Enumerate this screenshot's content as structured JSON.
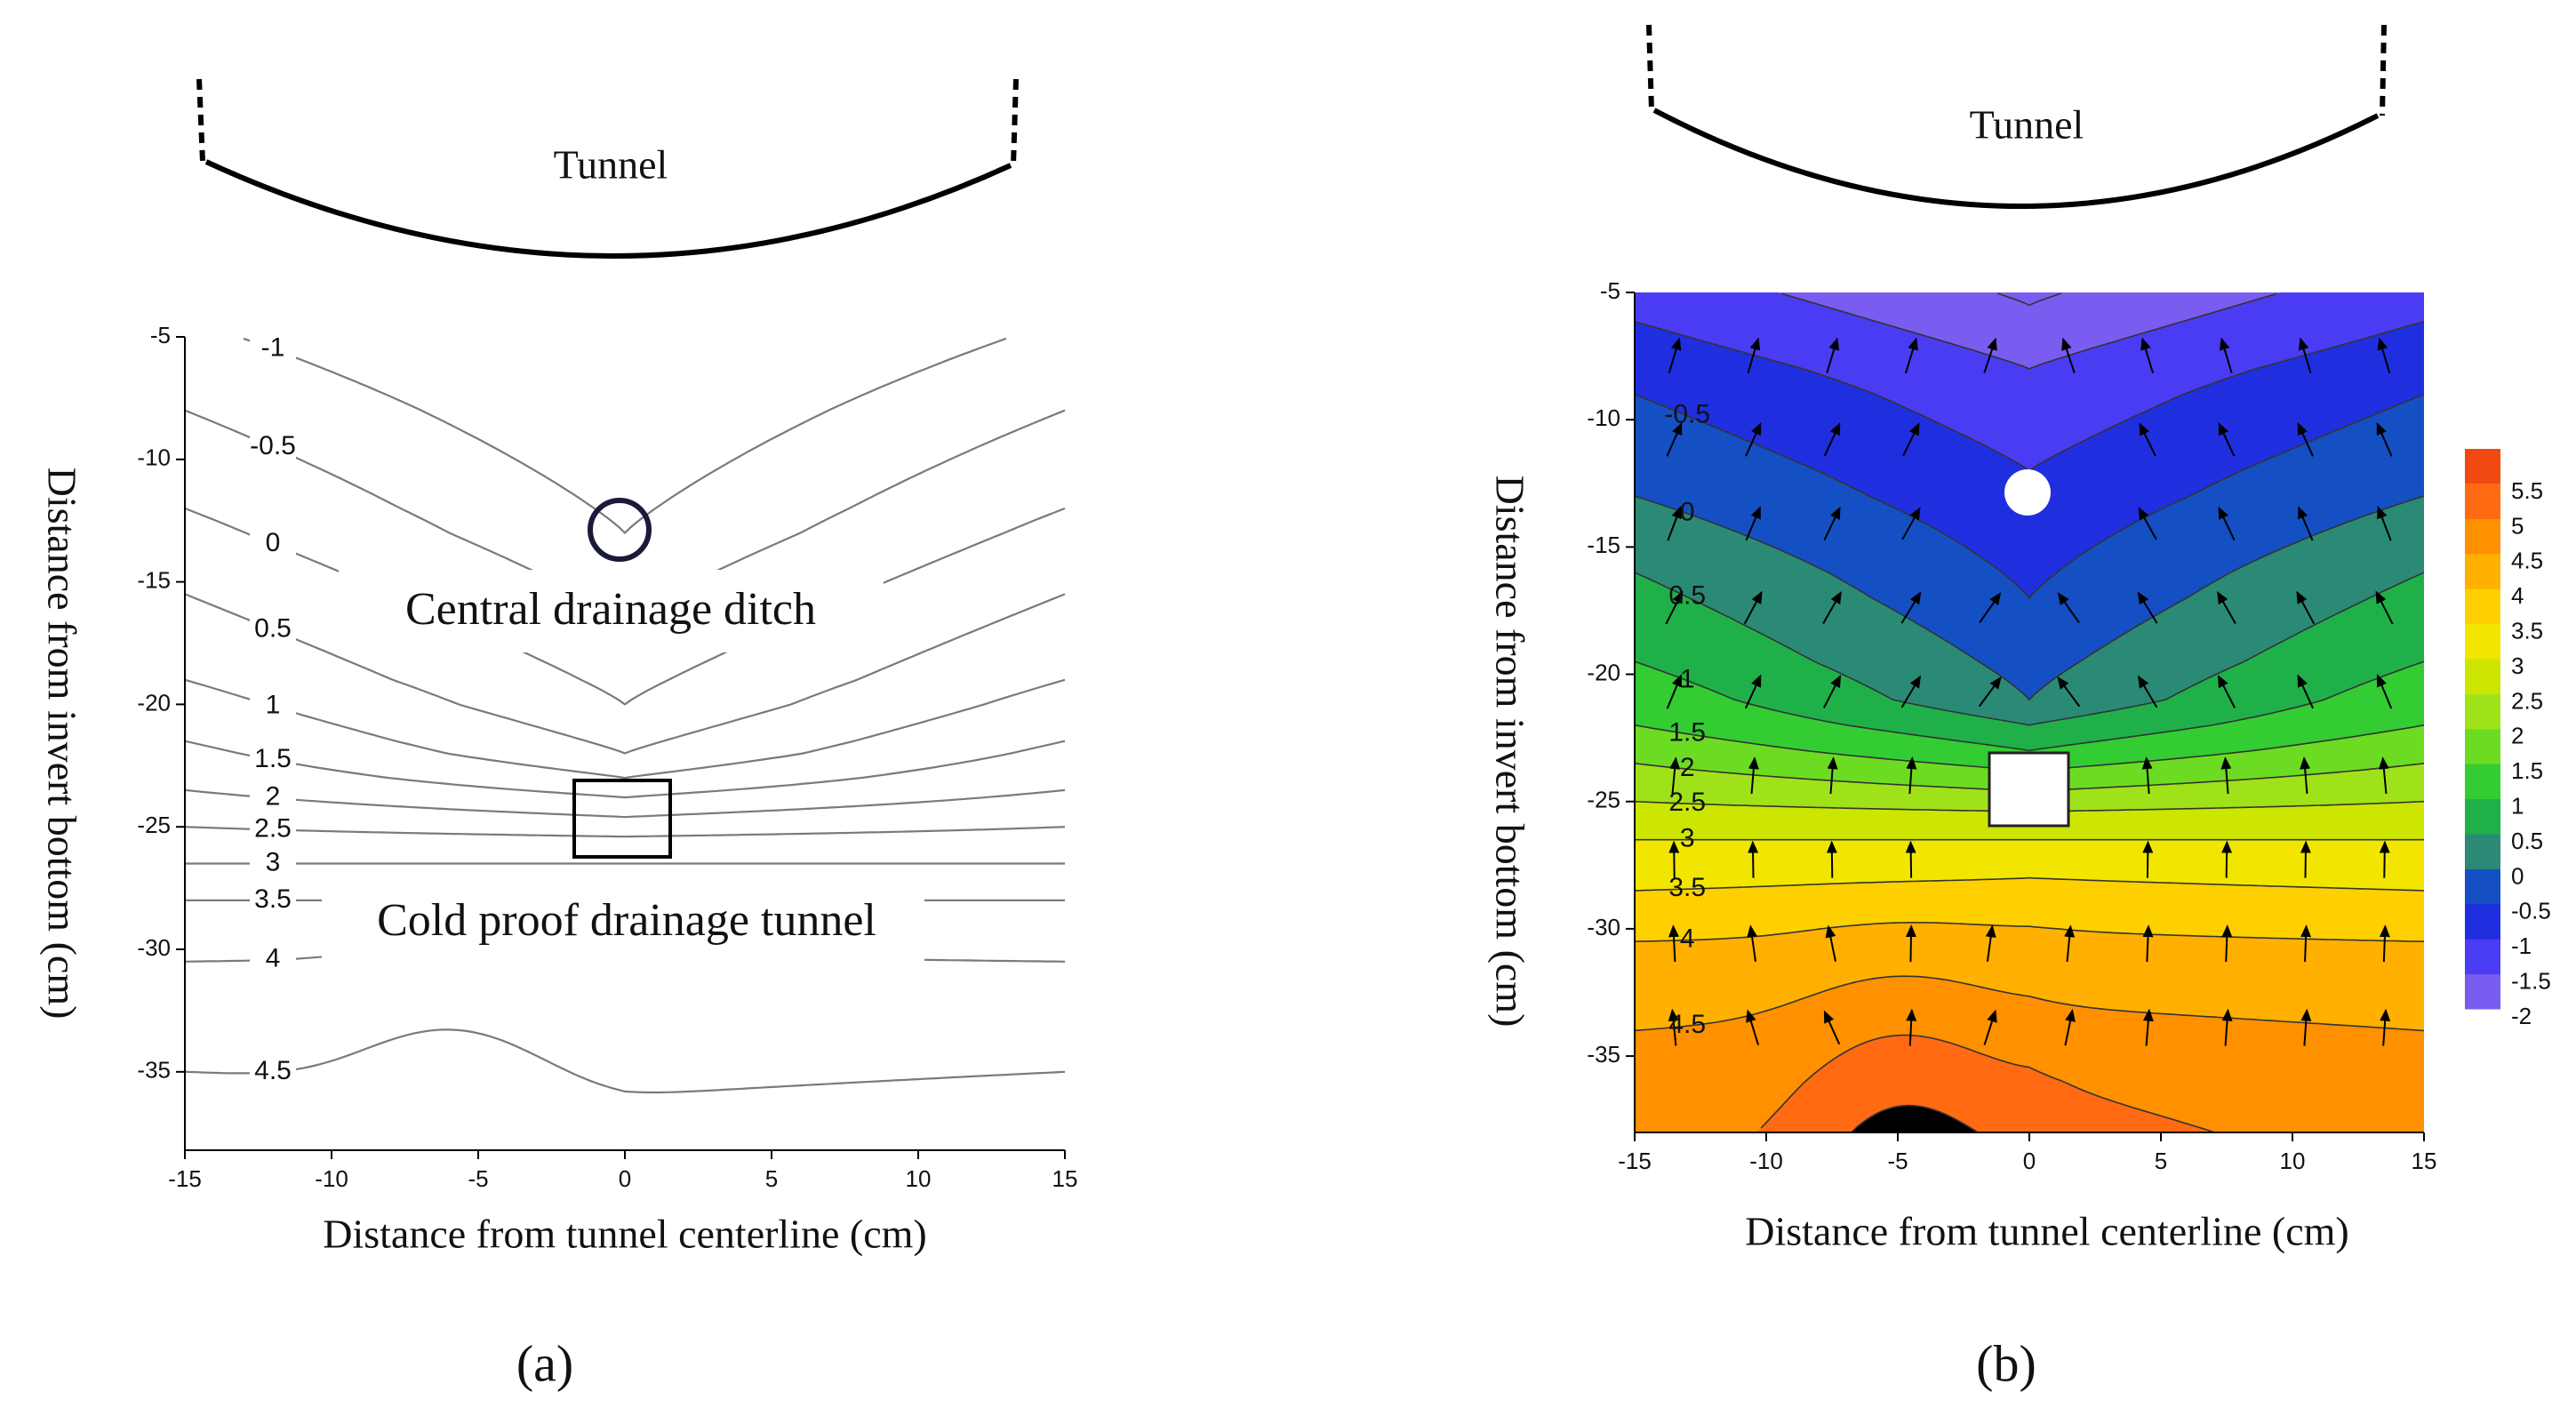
{
  "chart_data": [
    {
      "type": "contour",
      "panel_label": "(a)",
      "xlabel": "Distance from tunnel centerline (cm)",
      "ylabel": "Distance from invert bottom (cm)",
      "xlim": [
        -15,
        15
      ],
      "ylim": [
        -38.2,
        -5
      ],
      "xticks": [
        -15,
        -10,
        -5,
        0,
        5,
        10,
        15
      ],
      "yticks": [
        -5,
        -10,
        -15,
        -20,
        -25,
        -30,
        -35
      ],
      "levels": [
        -1,
        -0.5,
        0,
        0.5,
        1,
        1.5,
        2,
        2.5,
        3,
        3.5,
        4,
        4.5
      ],
      "line_color": "#7a7a7a",
      "annotations": [
        "Tunnel",
        "Central drainage ditch",
        "Cold proof drainage tunnel"
      ]
    },
    {
      "type": "filled_contour",
      "panel_label": "(b)",
      "xlabel": "Distance from tunnel centerline (cm)",
      "ylabel": "Distance from invert bottom (cm)",
      "xlim": [
        -15,
        15
      ],
      "ylim": [
        -38,
        -5
      ],
      "xticks": [
        -15,
        -10,
        -5,
        0,
        5,
        10,
        15
      ],
      "yticks": [
        -5,
        -10,
        -15,
        -20,
        -25,
        -30,
        -35
      ],
      "levels": [
        -2,
        -1.5,
        -1,
        -0.5,
        0,
        0.5,
        1,
        1.5,
        2,
        2.5,
        3,
        3.5,
        4,
        4.5,
        5,
        5.5
      ],
      "colors": [
        "#7b5cf0",
        "#4a3cf2",
        "#1f2fe0",
        "#1450c4",
        "#2a8a76",
        "#20b04a",
        "#33cc33",
        "#6cdc22",
        "#a0e21a",
        "#cce600",
        "#f2e600",
        "#ffd000",
        "#ffb000",
        "#ff9000",
        "#ff6a12"
      ],
      "annotations": [
        "Tunnel"
      ]
    }
  ]
}
